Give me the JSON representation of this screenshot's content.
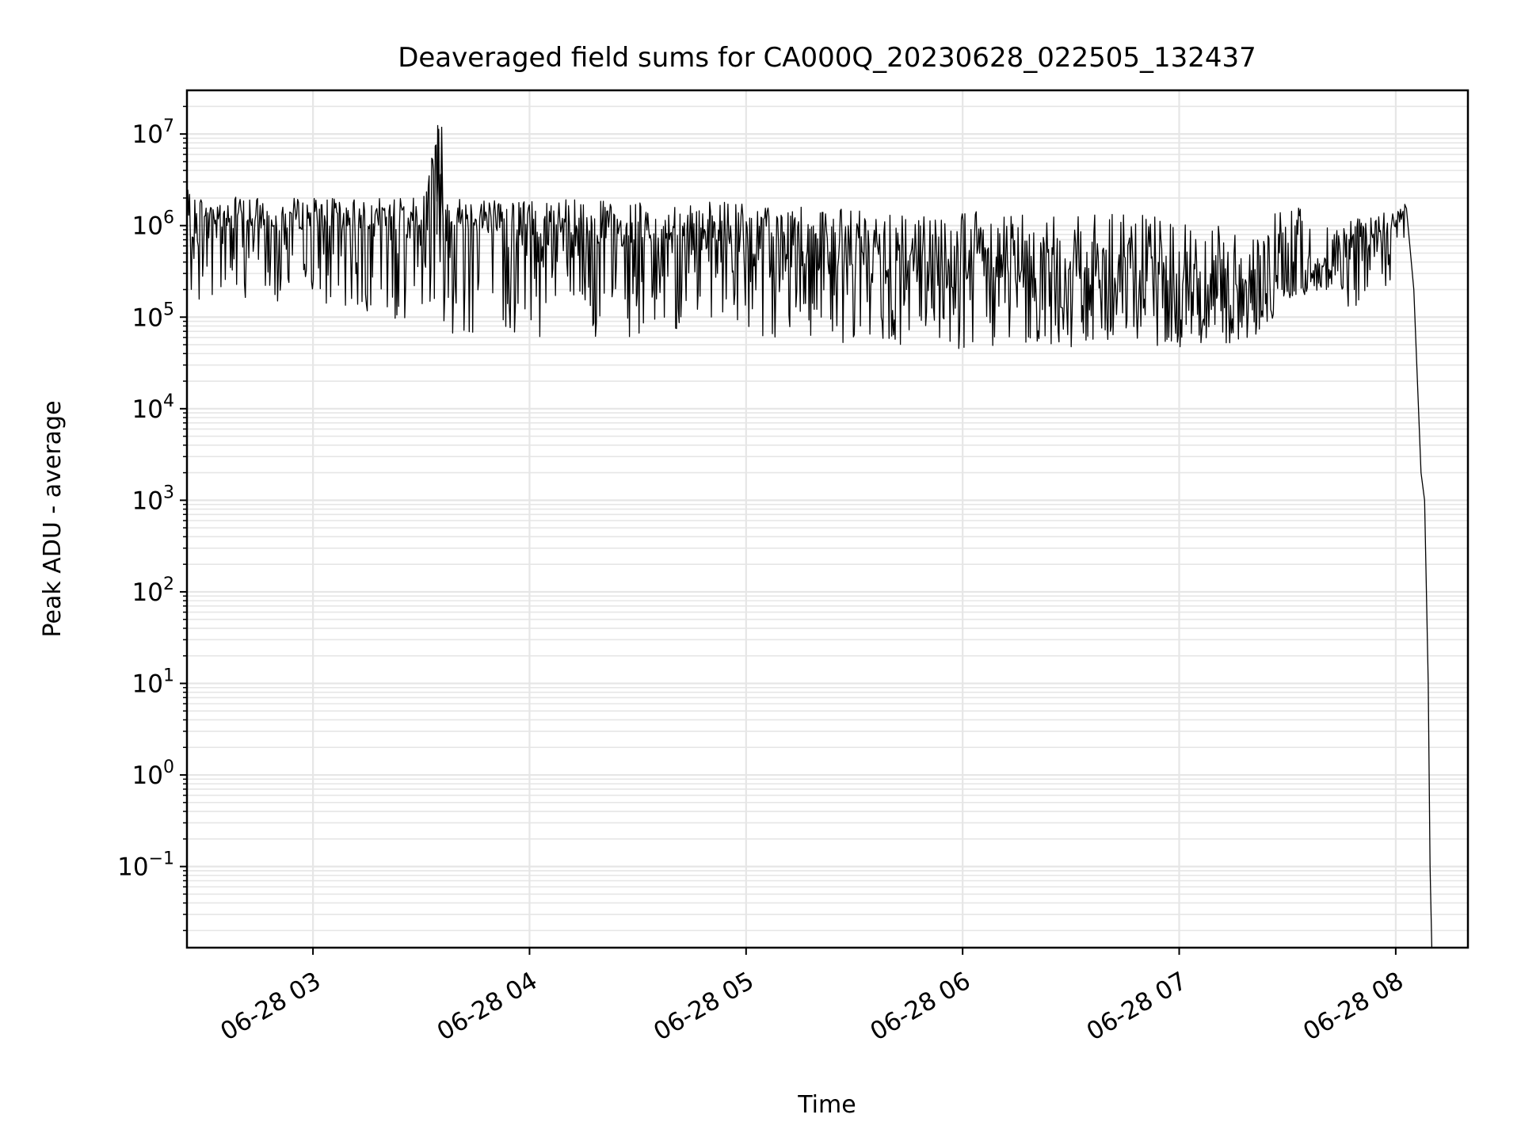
{
  "chart_data": {
    "type": "line",
    "title": "Deaveraged field sums for CA000Q_20230628_022505_132437",
    "xlabel": "Time",
    "ylabel": "Peak ADU - average",
    "yscale": "log",
    "ylim": [
      0.013,
      30000000
    ],
    "xlim": [
      "2023-06-28 02:25:05",
      "2023-06-28 08:20:00"
    ],
    "grid": true,
    "line_color": "#000000",
    "grid_color": "#e6e6e6",
    "x_ticks": [
      {
        "value": "2023-06-28 03:00:00",
        "label": "06-28 03"
      },
      {
        "value": "2023-06-28 04:00:00",
        "label": "06-28 04"
      },
      {
        "value": "2023-06-28 05:00:00",
        "label": "06-28 05"
      },
      {
        "value": "2023-06-28 06:00:00",
        "label": "06-28 06"
      },
      {
        "value": "2023-06-28 07:00:00",
        "label": "06-28 07"
      },
      {
        "value": "2023-06-28 08:00:00",
        "label": "06-28 08"
      }
    ],
    "y_ticks": [
      {
        "value": 0.1,
        "base": "10",
        "exp": "−1"
      },
      {
        "value": 1,
        "base": "10",
        "exp": "0"
      },
      {
        "value": 10,
        "base": "10",
        "exp": "1"
      },
      {
        "value": 100,
        "base": "10",
        "exp": "2"
      },
      {
        "value": 1000,
        "base": "10",
        "exp": "3"
      },
      {
        "value": 10000,
        "base": "10",
        "exp": "4"
      },
      {
        "value": 100000,
        "base": "10",
        "exp": "5"
      },
      {
        "value": 1000000,
        "base": "10",
        "exp": "6"
      },
      {
        "value": 10000000,
        "base": "10",
        "exp": "7"
      }
    ],
    "series": [
      {
        "x": [
          "2023-06-28 02:25:05",
          "2023-06-28 02:30:00",
          "2023-06-28 02:45:00",
          "2023-06-28 03:00:00",
          "2023-06-28 03:30:00",
          "2023-06-28 03:35:00",
          "2023-06-28 03:36:00",
          "2023-06-28 03:40:00",
          "2023-06-28 04:00:00",
          "2023-06-28 04:30:00",
          "2023-06-28 05:00:00",
          "2023-06-28 05:30:00",
          "2023-06-28 06:00:00",
          "2023-06-28 06:30:00",
          "2023-06-28 07:00:00",
          "2023-06-28 07:20:00",
          "2023-06-28 07:30:00",
          "2023-06-28 07:40:00",
          "2023-06-28 07:50:00",
          "2023-06-28 08:00:00",
          "2023-06-28 08:03:00",
          "2023-06-28 08:05:00",
          "2023-06-28 08:07:00",
          "2023-06-28 08:08:00",
          "2023-06-28 08:09:00",
          "2023-06-28 08:09:30",
          "2023-06-28 08:10:00"
        ],
        "y": [
          600000,
          1000000,
          900000,
          900000,
          900000,
          12000000,
          800000,
          900000,
          700000,
          600000,
          500000,
          300000,
          200000,
          200000,
          150000,
          100000,
          200000,
          250000,
          500000,
          800000,
          1500000,
          200000,
          2000,
          1000,
          10,
          0.1,
          0.013
        ],
        "envelope_high": [
          2500000,
          2200000,
          2000000,
          2000000,
          2000000,
          12000000,
          2000000,
          2000000,
          2000000,
          1800000,
          1800000,
          1500000,
          1500000,
          1500000,
          1200000,
          1000000,
          2000000,
          1000000,
          1200000,
          1500000,
          1800000,
          200000,
          2000,
          1000,
          10,
          0.1,
          0.013
        ],
        "envelope_low": [
          150000,
          150000,
          150000,
          150000,
          80000,
          80000,
          60000,
          60000,
          60000,
          60000,
          60000,
          50000,
          45000,
          45000,
          45000,
          50000,
          150000,
          200000,
          100000,
          300000,
          800000,
          200000,
          2000,
          1000,
          10,
          0.1,
          0.013
        ]
      }
    ]
  }
}
